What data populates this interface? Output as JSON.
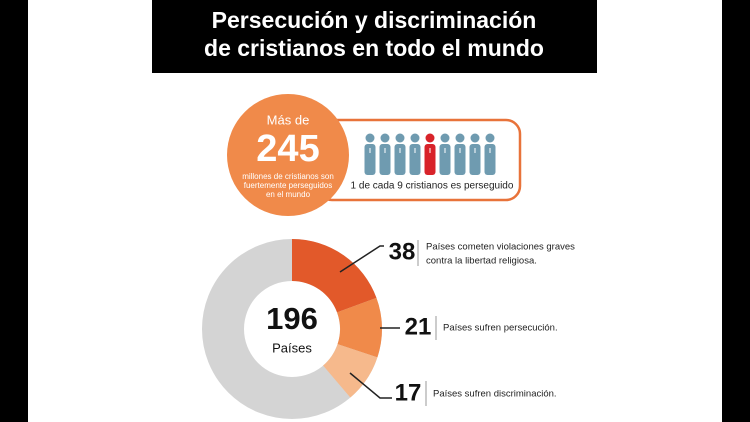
{
  "header": {
    "lines": [
      "Persecución y discriminación",
      "de cristianos en todo el mundo"
    ]
  },
  "stat": {
    "prefix": "Más de",
    "value": 245,
    "caption": [
      "millones de cristianos son",
      "fuertemente perseguidos",
      "en el mundo"
    ]
  },
  "ratio": {
    "text": "1 de cada 9 cristianos es perseguido"
  },
  "donut": {
    "total": 196,
    "total_label": "Países",
    "rest_color": "#d4d4d4",
    "segments": [
      {
        "value": 38,
        "color": "#e2592a",
        "text": [
          "Países cometen violaciones graves",
          "contra la libertad religiosa."
        ]
      },
      {
        "value": 21,
        "color": "#f08a4a",
        "text": [
          "Países sufren persecución."
        ]
      },
      {
        "value": 17,
        "color": "#f6b98c",
        "text": [
          "Países sufren discriminación."
        ]
      }
    ]
  }
}
